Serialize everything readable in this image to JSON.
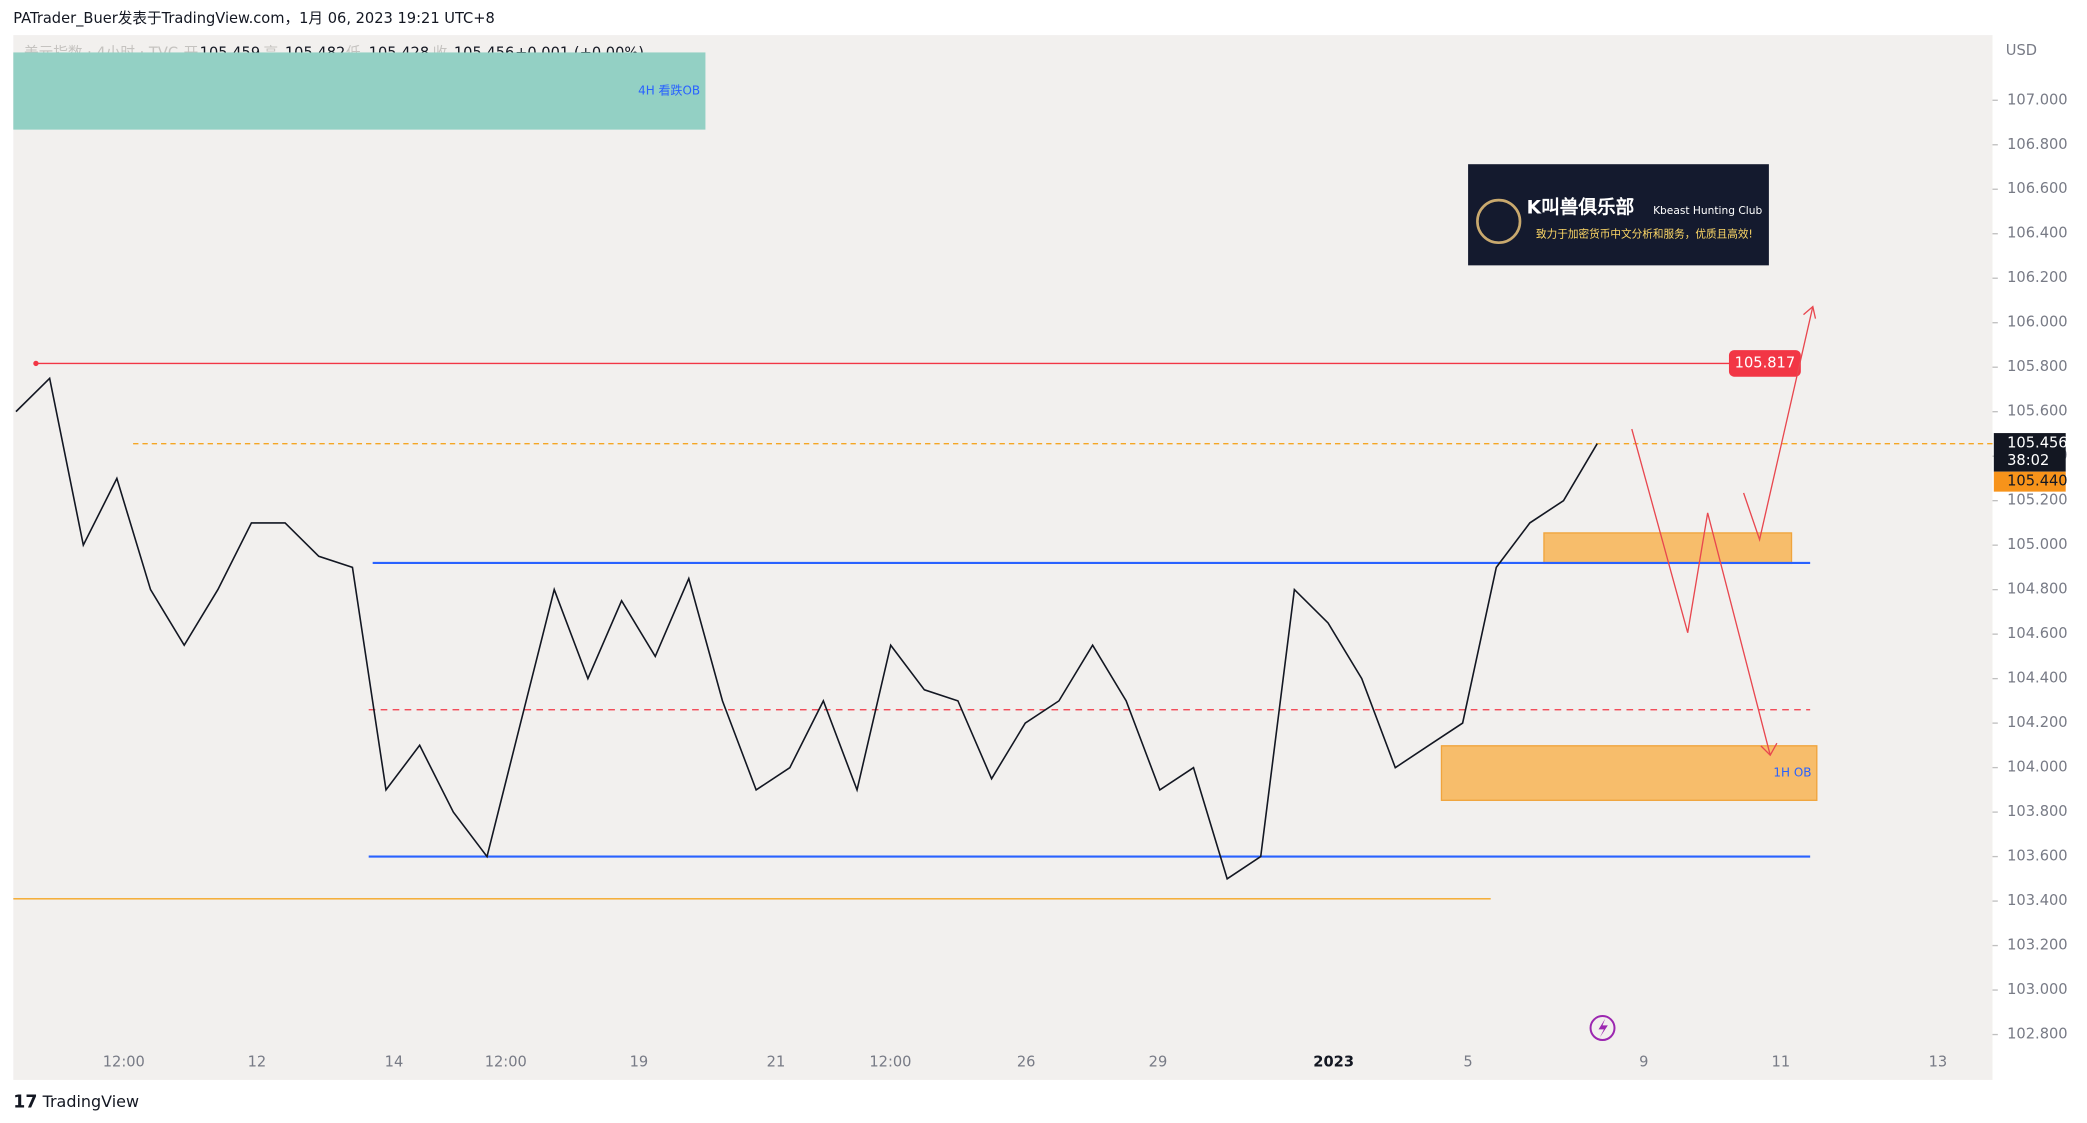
{
  "header": {
    "text": "PATrader_Buer发表于TradingView.com，1月 06, 2023 19:21 UTC+8"
  },
  "legend": {
    "symbol": "美元指数 · 4小时 · TVC",
    "open_label": "开",
    "open": "105.459",
    "high_label": "高",
    "high": "105.482",
    "low_label": "低",
    "low": "105.428",
    "close_label": "收",
    "close": "105.456",
    "change": "+0.001 (+0.00%)"
  },
  "chart_data": {
    "type": "line",
    "currency": "USD",
    "ylim": [
      102.596,
      107.293
    ],
    "yticks": [
      {
        "value": 102.8,
        "label": "102.800"
      },
      {
        "value": 103.0,
        "label": "103.000"
      },
      {
        "value": 103.2,
        "label": "103.200"
      },
      {
        "value": 103.4,
        "label": "103.400"
      },
      {
        "value": 103.6,
        "label": "103.600"
      },
      {
        "value": 103.8,
        "label": "103.800"
      },
      {
        "value": 104.0,
        "label": "104.000"
      },
      {
        "value": 104.2,
        "label": "104.200"
      },
      {
        "value": 104.4,
        "label": "104.400"
      },
      {
        "value": 104.6,
        "label": "104.600"
      },
      {
        "value": 104.8,
        "label": "104.800"
      },
      {
        "value": 105.0,
        "label": "105.000"
      },
      {
        "value": 105.2,
        "label": "105.200"
      },
      {
        "value": 105.4,
        "label": "105.400"
      },
      {
        "value": 105.6,
        "label": "105.600"
      },
      {
        "value": 105.8,
        "label": "105.800"
      },
      {
        "value": 106.0,
        "label": "106.000"
      },
      {
        "value": 106.2,
        "label": "106.200"
      },
      {
        "value": 106.4,
        "label": "106.400"
      },
      {
        "value": 106.6,
        "label": "106.600"
      },
      {
        "value": 106.8,
        "label": "106.800"
      },
      {
        "value": 107.0,
        "label": "107.000"
      }
    ],
    "x_labels": [
      "12:00",
      "12",
      "14",
      "12:00",
      "19",
      "21",
      "12:00",
      "26",
      "29",
      "2023",
      "5",
      "9",
      "11",
      "13"
    ],
    "series": [
      {
        "color": "#131722",
        "values": [
          105.6,
          105.75,
          105.0,
          105.3,
          104.8,
          104.55,
          104.8,
          105.1,
          105.1,
          104.95,
          104.9,
          103.9,
          104.1,
          103.8,
          103.6,
          104.2,
          104.8,
          104.4,
          104.75,
          104.5,
          104.85,
          104.3,
          103.9,
          104.0,
          104.3,
          103.9,
          104.55,
          104.35,
          104.3,
          103.95,
          104.2,
          104.3,
          104.55,
          104.3,
          103.9,
          104.0,
          103.5,
          103.6,
          104.8,
          104.65,
          104.4,
          104.0,
          104.1,
          104.2,
          104.9,
          105.1,
          105.2,
          105.456
        ]
      }
    ],
    "levels": [
      {
        "value": 105.817,
        "color": "#f23645",
        "label": "105.817"
      },
      {
        "value": 105.456,
        "color": "#f5a623"
      },
      {
        "value": 104.92,
        "color": "#2962ff"
      },
      {
        "value": 104.26,
        "color": "#f23645"
      },
      {
        "value": 103.6,
        "color": "#2962ff"
      },
      {
        "value": 103.41,
        "color": "#f5a623"
      }
    ],
    "zones": [
      {
        "label": "4H 看跌OB",
        "top": 107.215,
        "bottom": 106.868,
        "color": "#93d0c4"
      },
      {
        "top": 105.055,
        "bottom": 104.918,
        "color": "#f7bd6b"
      },
      {
        "label": "1H OB",
        "top": 104.098,
        "bottom": 103.853,
        "color": "#f7bd6b"
      }
    ],
    "last_price": {
      "value": 105.456,
      "label": "105.456",
      "countdown": "38:02"
    },
    "price_tag": {
      "value": 105.44,
      "label": "105.440"
    }
  },
  "branding": {
    "logo_title": "K叫兽俱乐部",
    "logo_sub": "Kbeast Hunting Club",
    "logo_slogan": "致力于加密货币中文分析和服务，优质且高效!",
    "footer": "TradingView"
  }
}
